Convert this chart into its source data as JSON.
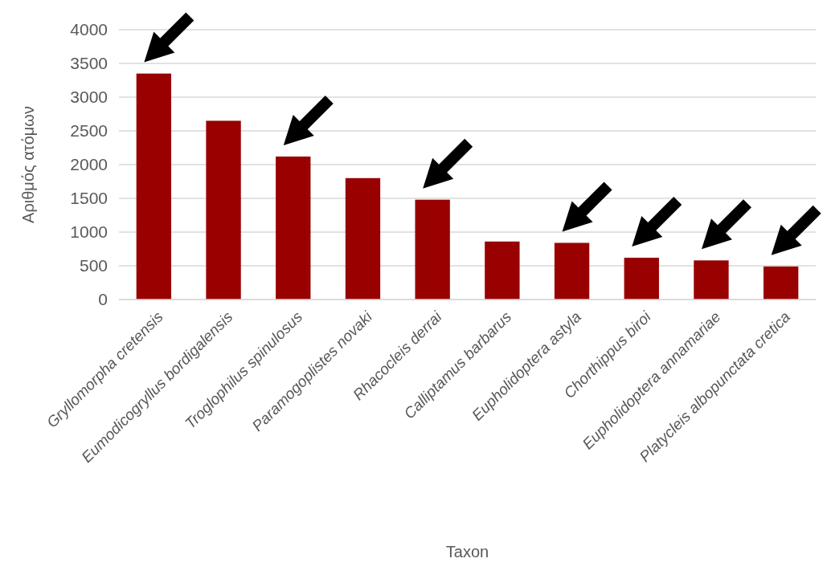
{
  "chart_data": {
    "type": "bar",
    "xlabel": "Taxon",
    "ylabel": "Αριθμός ατόμων",
    "categories": [
      "Gryllomorpha cretensis",
      "Eumodicogryllus bordigalensis",
      "Troglophilus spinulosus",
      "Paramogoplistes novaki",
      "Rhacocleis derrai",
      "Calliptamus barbarus",
      "Eupholidoptera astyla",
      "Chorthippus biroi",
      "Eupholidoptera annamariae",
      "Platycleis albopunctata cretica"
    ],
    "values": [
      3350,
      2650,
      2120,
      1800,
      1480,
      860,
      840,
      620,
      580,
      490
    ],
    "color": "#990000",
    "ylim": [
      0,
      4000
    ],
    "yticks": [
      0,
      500,
      1000,
      1500,
      2000,
      2500,
      3000,
      3500,
      4000
    ],
    "grid": "y"
  }
}
